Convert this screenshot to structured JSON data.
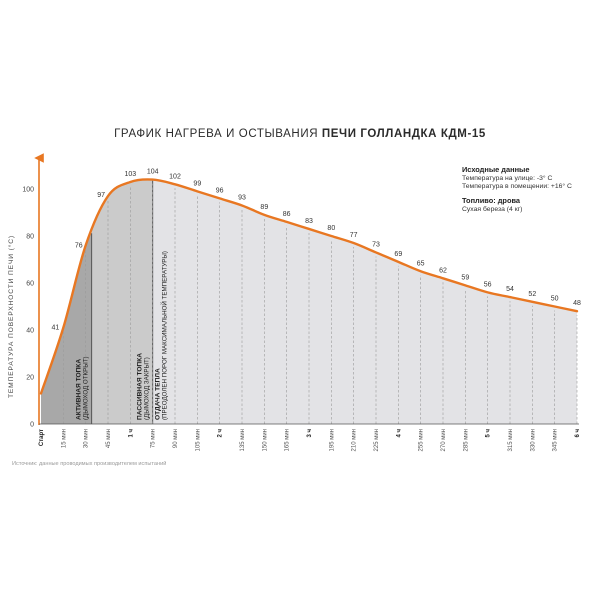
{
  "title": {
    "normal": "ГРАФИК НАГРЕВА И ОСТЫВАНИЯ",
    "bold": "ПЕЧИ ГОЛЛАНДКА КДМ-15"
  },
  "initial_data": {
    "heading": "Исходные данные",
    "line1": "Температура на улице: -3° С",
    "line2": "Температура в помещении: +16° С"
  },
  "fuel": {
    "heading": "Топливо: дрова",
    "line1": "Сухая береза (4 кг)"
  },
  "source_note": "Источник: данные проводимых производителем испытаний",
  "colors": {
    "accent": "#e87722",
    "active_fill": "#a8a8a8",
    "passive_fill": "#cbcbcb",
    "release_fill": "#e3e3e6",
    "gridline": "#9a9a9a"
  },
  "chart_data": {
    "type": "area",
    "ylabel": "ТЕМПЕРАТУРА ПОВЕРХНОСТИ ПЕЧИ (°С)",
    "xlabel": "",
    "ylim": [
      0,
      110
    ],
    "yticks": [
      0,
      20,
      40,
      60,
      80,
      100
    ],
    "grid": "vertical dashed",
    "x_minutes": [
      0,
      15,
      30,
      45,
      60,
      75,
      90,
      105,
      120,
      135,
      150,
      165,
      180,
      195,
      210,
      225,
      240,
      255,
      270,
      285,
      300,
      315,
      330,
      345,
      360
    ],
    "x_tick_labels": [
      "Старт",
      "15 мин",
      "30 мин",
      "45 мин",
      "1 ч",
      "75 мин",
      "90 мин",
      "105 мин",
      "2 ч",
      "135 мин",
      "150 мин",
      "165 мин",
      "3 ч",
      "195 мин",
      "210 мин",
      "225 мин",
      "4 ч",
      "255 мин",
      "270 мин",
      "285 мин",
      "5 ч",
      "315 мин",
      "330 мин",
      "345 мин",
      "6 ч"
    ],
    "x_tick_bold": [
      true,
      false,
      false,
      false,
      true,
      false,
      false,
      false,
      true,
      false,
      false,
      false,
      true,
      false,
      false,
      false,
      true,
      false,
      false,
      false,
      true,
      false,
      false,
      false,
      true
    ],
    "points": [
      {
        "x": 15,
        "y": 41,
        "label": "41"
      },
      {
        "x": 30,
        "y": 76,
        "label": "76"
      },
      {
        "x": 45,
        "y": 97,
        "label": "97"
      },
      {
        "x": 60,
        "y": 103,
        "label": "103"
      },
      {
        "x": 75,
        "y": 104,
        "label": "104"
      },
      {
        "x": 90,
        "y": 102,
        "label": "102"
      },
      {
        "x": 105,
        "y": 99,
        "label": "99"
      },
      {
        "x": 120,
        "y": 96,
        "label": "96"
      },
      {
        "x": 135,
        "y": 93,
        "label": "93"
      },
      {
        "x": 150,
        "y": 89,
        "label": "89"
      },
      {
        "x": 165,
        "y": 86,
        "label": "86"
      },
      {
        "x": 180,
        "y": 83,
        "label": "83"
      },
      {
        "x": 195,
        "y": 80,
        "label": "80"
      },
      {
        "x": 210,
        "y": 77,
        "label": "77"
      },
      {
        "x": 225,
        "y": 73,
        "label": "73"
      },
      {
        "x": 240,
        "y": 69,
        "label": "69"
      },
      {
        "x": 255,
        "y": 65,
        "label": "65"
      },
      {
        "x": 270,
        "y": 62,
        "label": "62"
      },
      {
        "x": 285,
        "y": 59,
        "label": "59"
      },
      {
        "x": 300,
        "y": 56,
        "label": "56"
      },
      {
        "x": 315,
        "y": 54,
        "label": "54"
      },
      {
        "x": 330,
        "y": 52,
        "label": "52"
      },
      {
        "x": 345,
        "y": 50,
        "label": "50"
      },
      {
        "x": 360,
        "y": 48,
        "label": "48"
      }
    ],
    "curve_start": {
      "x": 0,
      "y": 13
    },
    "phases": [
      {
        "name": "Активная топка",
        "note": "(дымоход открыт)",
        "from": 0,
        "to": 34
      },
      {
        "name": "Пассивная топка",
        "note": "(дымоход закрыт)",
        "from": 34,
        "to": 75
      },
      {
        "name": "Отдача тепла",
        "note": "(преодолен порог максимальной температуры)",
        "from": 75,
        "to": 360
      }
    ]
  }
}
